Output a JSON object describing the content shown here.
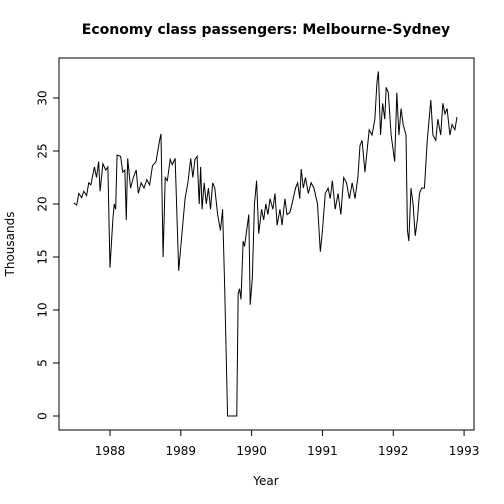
{
  "chart_data": {
    "type": "line",
    "title": "Economy class passengers: Melbourne-Sydney",
    "x_label": "Year",
    "y_label": "Thousands",
    "color": "#000000",
    "xlim": [
      1987.28,
      1993.14
    ],
    "ylim": [
      -1.32,
      33.77
    ],
    "xticks": [
      1988,
      1989,
      1990,
      1991,
      1992,
      1993
    ],
    "yticks": [
      0,
      5,
      10,
      15,
      20,
      25,
      30
    ],
    "x": [
      1987.49,
      1987.53,
      1987.56,
      1987.6,
      1987.63,
      1987.67,
      1987.7,
      1987.73,
      1987.78,
      1987.81,
      1987.84,
      1987.86,
      1987.9,
      1987.94,
      1987.97,
      1988.0,
      1988.04,
      1988.06,
      1988.08,
      1988.1,
      1988.15,
      1988.18,
      1988.21,
      1988.23,
      1988.25,
      1988.29,
      1988.33,
      1988.37,
      1988.4,
      1988.44,
      1988.48,
      1988.52,
      1988.56,
      1988.6,
      1988.65,
      1988.7,
      1988.72,
      1988.75,
      1988.78,
      1988.81,
      1988.85,
      1988.88,
      1988.92,
      1988.97,
      1989.02,
      1989.06,
      1989.1,
      1989.14,
      1989.17,
      1989.2,
      1989.23,
      1989.26,
      1989.28,
      1989.3,
      1989.33,
      1989.36,
      1989.39,
      1989.42,
      1989.45,
      1989.48,
      1989.52,
      1989.56,
      1989.59,
      1989.62,
      1989.66,
      1989.7,
      1989.75,
      1989.79,
      1989.81,
      1989.83,
      1989.85,
      1989.88,
      1989.9,
      1989.92,
      1989.96,
      1989.98,
      1990.01,
      1990.04,
      1990.07,
      1990.1,
      1990.14,
      1990.17,
      1990.2,
      1990.23,
      1990.26,
      1990.3,
      1990.33,
      1990.36,
      1990.4,
      1990.43,
      1990.47,
      1990.5,
      1990.54,
      1990.57,
      1990.62,
      1990.65,
      1990.68,
      1990.7,
      1990.73,
      1990.76,
      1990.8,
      1990.84,
      1990.88,
      1990.93,
      1990.97,
      1991.0,
      1991.04,
      1991.08,
      1991.11,
      1991.14,
      1991.18,
      1991.22,
      1991.26,
      1991.3,
      1991.34,
      1991.38,
      1991.42,
      1991.46,
      1991.5,
      1991.53,
      1991.56,
      1991.6,
      1991.63,
      1991.66,
      1991.7,
      1991.74,
      1991.77,
      1991.79,
      1991.82,
      1991.85,
      1991.88,
      1991.9,
      1991.93,
      1991.97,
      1992.0,
      1992.02,
      1992.05,
      1992.08,
      1992.11,
      1992.14,
      1992.18,
      1992.2,
      1992.22,
      1992.25,
      1992.28,
      1992.31,
      1992.34,
      1992.37,
      1992.4,
      1992.44,
      1992.48,
      1992.53,
      1992.56,
      1992.6,
      1992.63,
      1992.67,
      1992.7,
      1992.73,
      1992.76,
      1992.8,
      1992.83,
      1992.87,
      1992.9
    ],
    "values": [
      20.1,
      19.9,
      21.0,
      20.6,
      21.2,
      20.8,
      22.0,
      21.8,
      23.5,
      22.5,
      24.0,
      21.2,
      23.8,
      23.2,
      23.5,
      14.0,
      18.5,
      20.0,
      19.5,
      24.6,
      24.5,
      23.0,
      23.2,
      18.5,
      24.3,
      21.5,
      22.5,
      23.2,
      21.0,
      22.0,
      21.5,
      22.3,
      21.8,
      23.6,
      24.0,
      26.0,
      26.6,
      15.0,
      22.5,
      22.2,
      24.2,
      23.7,
      24.3,
      13.7,
      17.5,
      20.5,
      22.0,
      24.3,
      22.5,
      24.2,
      24.5,
      20.0,
      23.5,
      19.5,
      22.0,
      20.0,
      21.5,
      19.5,
      22.0,
      21.5,
      19.0,
      17.5,
      19.5,
      12.0,
      0,
      0,
      0,
      0,
      11.5,
      12.0,
      11.0,
      16.5,
      16.0,
      17.0,
      19.0,
      10.5,
      13.0,
      20.0,
      22.2,
      17.2,
      19.5,
      18.5,
      20.0,
      19.0,
      20.5,
      19.5,
      21.0,
      18.0,
      19.5,
      18.0,
      20.5,
      19.0,
      19.2,
      20.0,
      21.5,
      22.0,
      20.5,
      23.3,
      21.5,
      22.5,
      21.0,
      22.0,
      21.5,
      20.0,
      15.5,
      17.5,
      21.0,
      21.5,
      20.5,
      22.2,
      19.5,
      21.0,
      19.0,
      22.5,
      22.0,
      20.5,
      22.0,
      20.5,
      22.5,
      25.5,
      26.0,
      23.0,
      25.0,
      27.0,
      26.5,
      28.0,
      31.5,
      32.5,
      26.5,
      29.5,
      28.0,
      31.0,
      30.5,
      26.5,
      25.0,
      24.0,
      30.5,
      26.5,
      29.0,
      27.5,
      26.5,
      17.5,
      16.5,
      21.5,
      20.0,
      17.0,
      18.5,
      21.0,
      21.5,
      21.5,
      26.0,
      29.8,
      26.5,
      26.0,
      28.0,
      26.5,
      29.5,
      28.5,
      29.0,
      26.5,
      27.5,
      27.0,
      28.2
    ]
  }
}
